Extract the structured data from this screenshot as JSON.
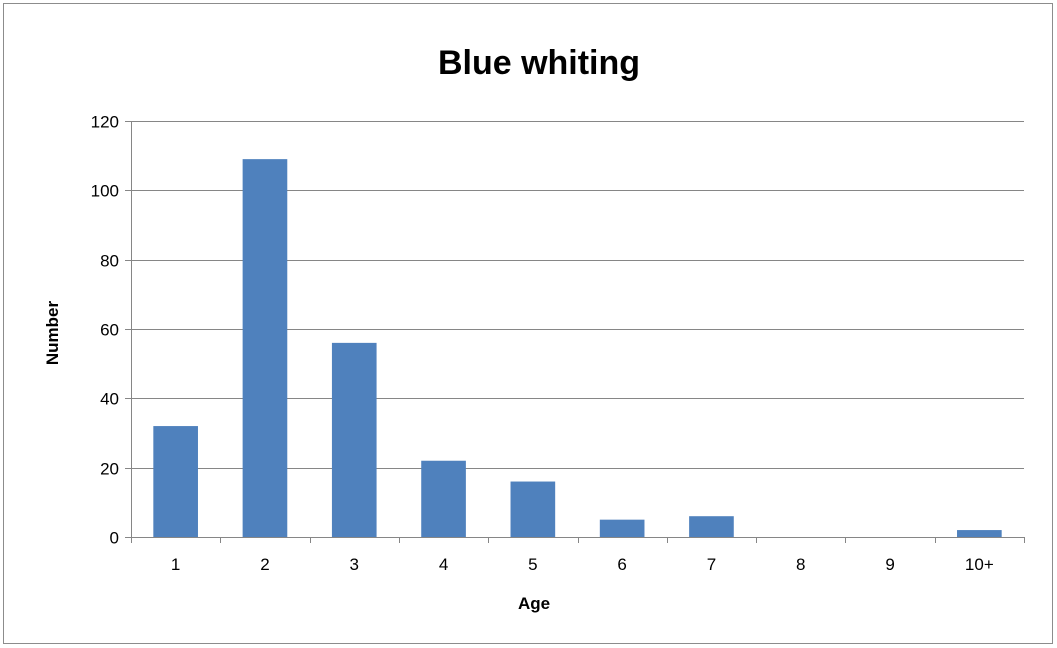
{
  "chart_data": {
    "type": "bar",
    "title": "Blue whiting",
    "xlabel": "Age",
    "ylabel": "Number",
    "categories": [
      "1",
      "2",
      "3",
      "4",
      "5",
      "6",
      "7",
      "8",
      "9",
      "10+"
    ],
    "values": [
      32,
      109,
      56,
      22,
      16,
      5,
      6,
      0,
      0,
      2
    ],
    "ylim": [
      0,
      120
    ],
    "yticks": [
      "0",
      "20",
      "40",
      "60",
      "80",
      "100",
      "120"
    ],
    "grid": true,
    "legend": "none",
    "colors": {
      "bar": "#4f81bd",
      "grid": "#868686",
      "axis": "#868686"
    }
  }
}
